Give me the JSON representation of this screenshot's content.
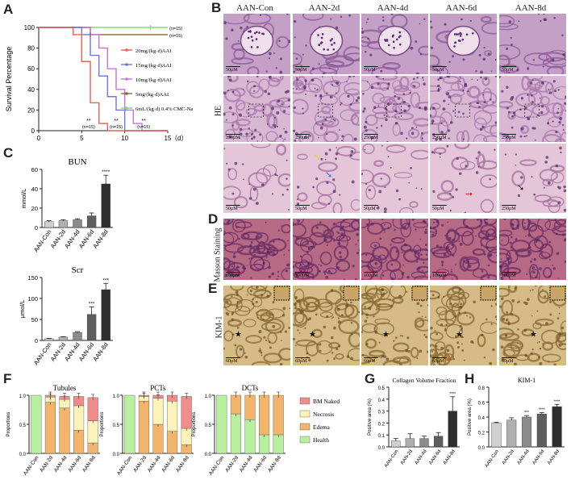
{
  "panels": {
    "A": "A",
    "B": "B",
    "C": "C",
    "D": "D",
    "E": "E",
    "F": "F",
    "G": "G",
    "H": "H"
  },
  "columns": [
    "AAN-Con",
    "AAN-2d",
    "AAN-4d",
    "AAN-6d",
    "AAN-8d"
  ],
  "row_labels": {
    "he": "HE",
    "masson": "Masson Staining",
    "kim": "KIM-1"
  },
  "scale_labels": {
    "he_row1": [
      "50μM",
      "50μM",
      "50μM",
      "50μM",
      "50μM"
    ],
    "he_row2": [
      "250μM",
      "250μM",
      "250μM",
      "250μM",
      "250μM"
    ],
    "he_row3": [
      "50μM",
      "50μM",
      "50μM",
      "50μM",
      "250μM"
    ],
    "masson": [
      "100μM",
      "100μM",
      "100μM",
      "100μM",
      "100μM"
    ],
    "kim": [
      "60μM",
      "60μM",
      "60μM",
      "60μM",
      "60μM"
    ]
  },
  "colors": {
    "con": "#d0d0d0",
    "d2": "#b0b0b0",
    "d4": "#8c8c8c",
    "d6": "#5e5e5e",
    "d8": "#2e2e2e",
    "health": "#b8f0a0",
    "edema": "#f2b56b",
    "necrosis": "#fbf3b8",
    "bm": "#f08c8c"
  },
  "chart_data": [
    {
      "type": "line",
      "panel": "A",
      "ylabel": "Survival Percentage",
      "xlabel": "（d）",
      "xlim": [
        0,
        15
      ],
      "ylim": [
        0,
        100
      ],
      "xticks": [
        0,
        5,
        10,
        15
      ],
      "yticks": [
        0,
        20,
        40,
        60,
        80,
        100
      ],
      "series": [
        {
          "name": "20mg/(kg·d)AAI",
          "color": "#e8604c",
          "steps": [
            [
              0,
              100
            ],
            [
              4,
              100
            ],
            [
              4,
              93
            ],
            [
              5,
              93
            ],
            [
              5,
              67
            ],
            [
              6,
              67
            ],
            [
              6,
              27
            ],
            [
              7,
              27
            ],
            [
              7,
              7
            ],
            [
              8,
              7
            ],
            [
              8,
              0
            ],
            [
              15,
              0
            ]
          ],
          "end_label": "(n=15)"
        },
        {
          "name": "15mg/(kg·d)AAI",
          "color": "#6f74e6",
          "steps": [
            [
              0,
              100
            ],
            [
              5,
              100
            ],
            [
              5,
              93
            ],
            [
              6,
              93
            ],
            [
              6,
              73
            ],
            [
              7,
              73
            ],
            [
              7,
              53
            ],
            [
              8,
              53
            ],
            [
              8,
              33
            ],
            [
              9,
              33
            ],
            [
              9,
              20
            ],
            [
              10,
              20
            ],
            [
              10,
              0
            ],
            [
              15,
              0
            ]
          ],
          "end_label": "(n=15)"
        },
        {
          "name": "10mg/(kg·d)AAI",
          "color": "#c770e8",
          "steps": [
            [
              0,
              100
            ],
            [
              6,
              100
            ],
            [
              6,
              93
            ],
            [
              7,
              93
            ],
            [
              7,
              80
            ],
            [
              8,
              80
            ],
            [
              8,
              60
            ],
            [
              9,
              60
            ],
            [
              9,
              40
            ],
            [
              10,
              40
            ],
            [
              10,
              20
            ],
            [
              11,
              20
            ],
            [
              11,
              7
            ],
            [
              12,
              7
            ],
            [
              12,
              0
            ],
            [
              15,
              0
            ]
          ],
          "end_label": "(n=15)"
        },
        {
          "name": "5mg/(kg·d)AAI",
          "color": "#8a6b34",
          "steps": [
            [
              0,
              100
            ],
            [
              6,
              100
            ],
            [
              6,
              93
            ],
            [
              15,
              93
            ]
          ],
          "end_label": "(n=15)"
        },
        {
          "name": "6mL/(kg·d) 0.4% CMC-Na",
          "color": "#7be06b",
          "steps": [
            [
              0,
              100
            ],
            [
              15,
              100
            ]
          ],
          "end_label": "(n=15)"
        }
      ],
      "annotations": [
        "**",
        "(n=15)",
        "**",
        "(n=15)",
        "**",
        "(n=15)"
      ],
      "right_labels": [
        "(n=15)",
        "(n=15)"
      ]
    },
    {
      "type": "bar",
      "panel": "C-BUN",
      "title": "BUN",
      "ylabel": "mmol/L",
      "categories": [
        "AAN-Con",
        "AAN-2d",
        "AAN-4d",
        "AAN-6d",
        "AAN-8d"
      ],
      "values": [
        6,
        7,
        8,
        12,
        45
      ],
      "errors": [
        1,
        1,
        1,
        3,
        9
      ],
      "ylim": [
        0,
        60
      ],
      "yticks": [
        0,
        20,
        40,
        60
      ],
      "sig": [
        "",
        "",
        "",
        "",
        "****"
      ]
    },
    {
      "type": "bar",
      "panel": "C-Scr",
      "title": "Scr",
      "ylabel": "μmol/L",
      "categories": [
        "AAN-Con",
        "AAN-2d",
        "AAN-4d",
        "AAN-6d",
        "AAN-8d"
      ],
      "values": [
        4,
        8,
        19,
        62,
        121
      ],
      "errors": [
        1,
        1,
        2,
        18,
        15
      ],
      "ylim": [
        0,
        150
      ],
      "yticks": [
        0,
        50,
        100,
        150
      ],
      "sig": [
        "",
        "",
        "",
        "***",
        "***"
      ]
    },
    {
      "type": "bar",
      "stacked": true,
      "panel": "F-Tubules",
      "title": "Tubules",
      "ylabel": "Proportions",
      "categories": [
        "AAN-Con",
        "AAN-2d",
        "AAN-4d",
        "AAN-6d",
        "AAN-8d"
      ],
      "series": [
        {
          "name": "Health",
          "values": [
            1.0,
            0.0,
            0.0,
            0.0,
            0.0
          ]
        },
        {
          "name": "Edema",
          "values": [
            0.0,
            0.88,
            0.78,
            0.4,
            0.18
          ]
        },
        {
          "name": "Necrosis",
          "values": [
            0.0,
            0.09,
            0.15,
            0.42,
            0.38
          ]
        },
        {
          "name": "BM Naked",
          "values": [
            0.0,
            0.03,
            0.05,
            0.16,
            0.4
          ]
        }
      ],
      "ylim": [
        0,
        1.0
      ],
      "yticks": [
        0.0,
        0.5,
        1.0
      ]
    },
    {
      "type": "bar",
      "stacked": true,
      "panel": "F-PCTs",
      "title": "PCTs",
      "ylabel": "Proportions",
      "categories": [
        "AAN-Con",
        "AAN-2d",
        "AAN-4d",
        "AAN-6d",
        "AAN-8d"
      ],
      "series": [
        {
          "name": "Health",
          "values": [
            1.0,
            0.0,
            0.0,
            0.0,
            0.0
          ]
        },
        {
          "name": "Edema",
          "values": [
            0.0,
            0.9,
            0.5,
            0.38,
            0.15
          ]
        },
        {
          "name": "Necrosis",
          "values": [
            0.0,
            0.08,
            0.45,
            0.52,
            0.28
          ]
        },
        {
          "name": "BM Naked",
          "values": [
            0.0,
            0.02,
            0.05,
            0.1,
            0.55
          ]
        }
      ],
      "ylim": [
        0,
        1.0
      ],
      "yticks": [
        0.0,
        0.5,
        1.0
      ]
    },
    {
      "type": "bar",
      "stacked": true,
      "panel": "F-DCTs",
      "title": "DCTs",
      "ylabel": "Proportions",
      "categories": [
        "AAN-Con",
        "AAN-2d",
        "AAN-4d",
        "AAN-6d",
        "AAN-8d"
      ],
      "series": [
        {
          "name": "Health",
          "values": [
            1.0,
            0.68,
            0.58,
            0.32,
            0.32
          ]
        },
        {
          "name": "Edema",
          "values": [
            0.0,
            0.32,
            0.42,
            0.68,
            0.68
          ]
        },
        {
          "name": "Necrosis",
          "values": [
            0.0,
            0.0,
            0.0,
            0.0,
            0.0
          ]
        },
        {
          "name": "BM Naked",
          "values": [
            0.0,
            0.0,
            0.0,
            0.0,
            0.0
          ]
        }
      ],
      "ylim": [
        0,
        1.0
      ],
      "yticks": [
        0.0,
        0.5,
        1.0
      ],
      "legend": [
        "BM Naked",
        "Necrosis",
        "Edema",
        "Health"
      ]
    },
    {
      "type": "bar",
      "panel": "G",
      "title": "Collagen Volume Fraction",
      "ylabel": "Positive area (%)",
      "categories": [
        "AAN-Con",
        "AAN-2d",
        "AAN-4d",
        "AAN-6d",
        "AAN-8d"
      ],
      "values": [
        0.05,
        0.07,
        0.07,
        0.09,
        0.3
      ],
      "errors": [
        0.02,
        0.04,
        0.02,
        0.03,
        0.12
      ],
      "ylim": [
        0,
        0.5
      ],
      "yticks": [
        0.0,
        0.1,
        0.2,
        0.3,
        0.4,
        0.5
      ],
      "sig": [
        "",
        "",
        "",
        "",
        "****"
      ]
    },
    {
      "type": "bar",
      "panel": "H",
      "title": "KIM-1",
      "ylabel": "Positive area (%)",
      "categories": [
        "AAN-Con",
        "AAN-2d",
        "AAN-4d",
        "AAN-6d",
        "AAN-8d"
      ],
      "values": [
        0.32,
        0.36,
        0.4,
        0.44,
        0.54
      ],
      "errors": [
        0.01,
        0.03,
        0.02,
        0.02,
        0.03
      ],
      "ylim": [
        0,
        0.8
      ],
      "yticks": [
        0.0,
        0.2,
        0.4,
        0.6,
        0.8
      ],
      "sig": [
        "",
        "",
        "***",
        "****",
        "****"
      ]
    }
  ]
}
